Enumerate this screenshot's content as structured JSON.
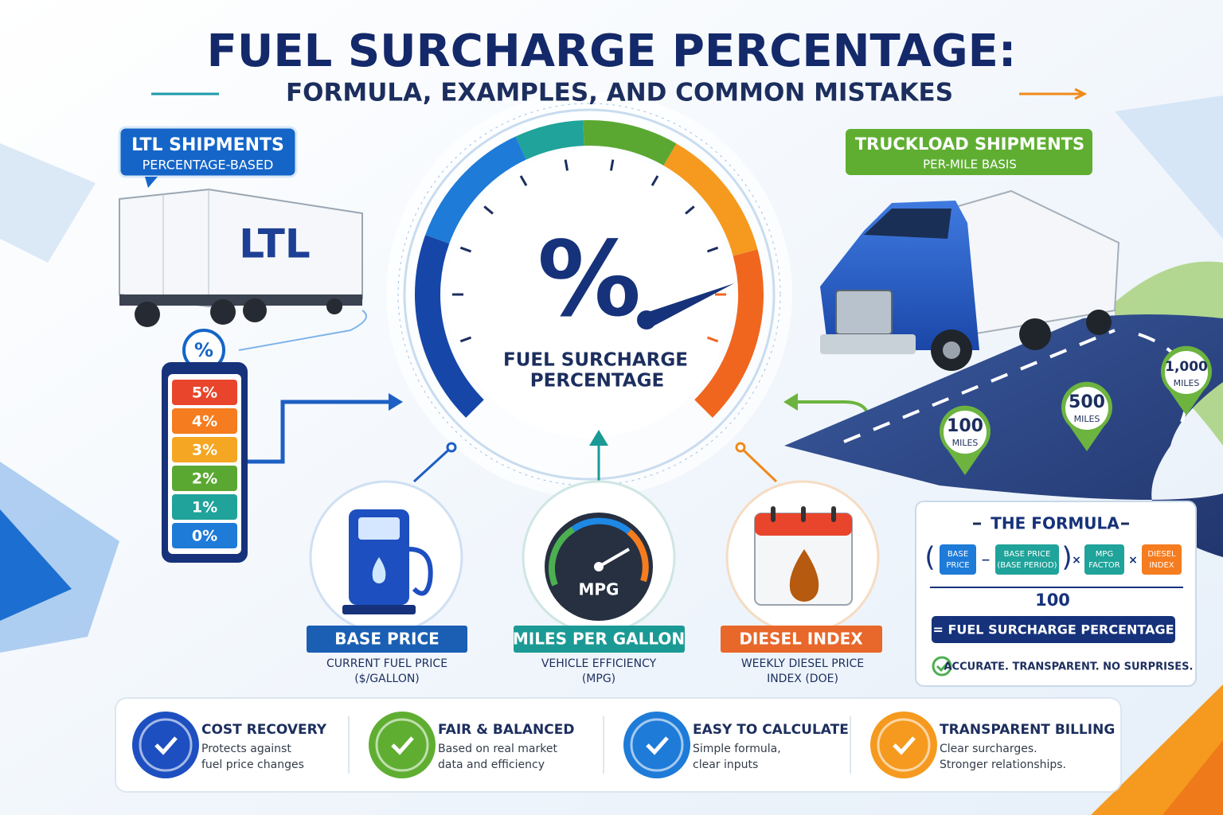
{
  "header": {
    "title": "FUEL SURCHARGE PERCENTAGE:",
    "subtitle": "FORMULA, EXAMPLES, AND COMMON MISTAKES"
  },
  "ltl": {
    "title": "LTL SHIPMENTS",
    "subtitle": "PERCENTAGE-BASED",
    "trailer_label": "LTL",
    "badge": "%",
    "scale": [
      "5%",
      "4%",
      "3%",
      "2%",
      "1%",
      "0%"
    ]
  },
  "truckload": {
    "title": "TRUCKLOAD SHIPMENTS",
    "subtitle": "PER-MILE BASIS",
    "markers": [
      {
        "value": "100",
        "unit": "MILES"
      },
      {
        "value": "500",
        "unit": "MILES"
      },
      {
        "value": "1,000",
        "unit": "MILES"
      }
    ]
  },
  "gauge": {
    "symbol": "%",
    "label_line1": "FUEL SURCHARGE",
    "label_line2": "PERCENTAGE"
  },
  "inputs": [
    {
      "title": "BASE PRICE",
      "desc_line1": "CURRENT FUEL PRICE",
      "desc_line2": "($/GALLON)"
    },
    {
      "title": "MILES PER GALLON",
      "icon_label": "MPG",
      "desc_line1": "VEHICLE EFFICIENCY",
      "desc_line2": "(MPG)"
    },
    {
      "title": "DIESEL INDEX",
      "desc_line1": "WEEKLY DIESEL PRICE",
      "desc_line2": "INDEX (DOE)"
    }
  ],
  "formula": {
    "title": "THE FORMULA",
    "parens": [
      "(",
      ")"
    ],
    "terms": [
      [
        "BASE",
        "PRICE"
      ],
      [
        "BASE PRICE",
        "(BASE PERIOD)"
      ],
      [
        "MPG",
        "FACTOR"
      ],
      [
        "DIESEL",
        "INDEX"
      ]
    ],
    "operators": [
      "−",
      "×",
      "×"
    ],
    "denominator": "100",
    "result": "= FUEL SURCHARGE PERCENTAGE",
    "note": "ACCURATE. TRANSPARENT. NO SURPRISES."
  },
  "benefits": [
    {
      "title": "COST RECOVERY",
      "text_line1": "Protects against",
      "text_line2": "fuel price changes"
    },
    {
      "title": "FAIR & BALANCED",
      "text_line1": "Based on real market",
      "text_line2": "data and efficiency"
    },
    {
      "title": "EASY TO CALCULATE",
      "text_line1": "Simple formula,",
      "text_line2": "clear inputs"
    },
    {
      "title": "TRANSPARENT BILLING",
      "text_line1": "Clear surcharges.",
      "text_line2": "Stronger relationships."
    }
  ]
}
